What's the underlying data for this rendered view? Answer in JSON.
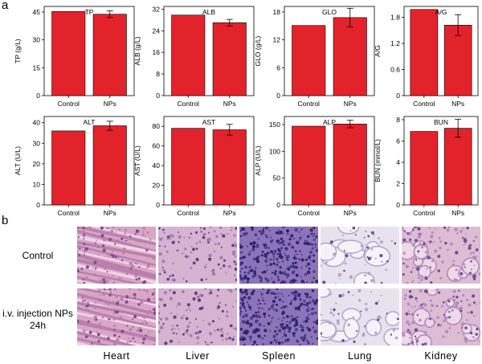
{
  "panel_labels": {
    "a": "a",
    "b": "b"
  },
  "chart_data": [
    {
      "type": "bar",
      "title": "TP",
      "ylabel": "TP (g/L)",
      "categories": [
        "Control",
        "NPs"
      ],
      "values": [
        45.3,
        43.8
      ],
      "errors": [
        0,
        1.8
      ],
      "ylim": [
        0,
        48
      ],
      "yticks": [
        0,
        15,
        30,
        45
      ]
    },
    {
      "type": "bar",
      "title": "ALB",
      "ylabel": "ALB (g/L)",
      "categories": [
        "Control",
        "NPs"
      ],
      "values": [
        29.8,
        27.0
      ],
      "errors": [
        0,
        1.2
      ],
      "ylim": [
        0,
        33
      ],
      "yticks": [
        0,
        8,
        16,
        24,
        32
      ]
    },
    {
      "type": "bar",
      "title": "GLO",
      "ylabel": "GLO (g/L)",
      "categories": [
        "Control",
        "NPs"
      ],
      "values": [
        15.1,
        16.8
      ],
      "errors": [
        0,
        2.0
      ],
      "ylim": [
        0,
        19.2
      ],
      "yticks": [
        0,
        6,
        12,
        18
      ]
    },
    {
      "type": "bar",
      "title": "A/G",
      "ylabel": "A/G",
      "categories": [
        "Control",
        "NPs"
      ],
      "values": [
        1.98,
        1.62
      ],
      "errors": [
        0,
        0.24
      ],
      "ylim": [
        0,
        2.05
      ],
      "yticks": [
        0.0,
        0.6,
        1.2,
        1.8
      ]
    },
    {
      "type": "bar",
      "title": "ALT",
      "ylabel": "ALT (U/L)",
      "categories": [
        "Control",
        "NPs"
      ],
      "values": [
        36.0,
        38.5
      ],
      "errors": [
        0,
        2.2
      ],
      "ylim": [
        0,
        43
      ],
      "yticks": [
        0,
        10,
        20,
        30,
        40
      ]
    },
    {
      "type": "bar",
      "title": "AST",
      "ylabel": "AST (U/L)",
      "categories": [
        "Control",
        "NPs"
      ],
      "values": [
        78.0,
        76.5
      ],
      "errors": [
        0,
        5.5
      ],
      "ylim": [
        0,
        90
      ],
      "yticks": [
        0,
        20,
        40,
        60,
        80
      ]
    },
    {
      "type": "bar",
      "title": "ALP",
      "ylabel": "ALP (U/L)",
      "categories": [
        "Control",
        "NPs"
      ],
      "values": [
        147,
        151
      ],
      "errors": [
        0,
        7
      ],
      "ylim": [
        0,
        165
      ],
      "yticks": [
        0,
        50,
        100,
        150
      ]
    },
    {
      "type": "bar",
      "title": "BUN",
      "ylabel": "BUN (mmol/L)",
      "categories": [
        "Control",
        "NPs"
      ],
      "values": [
        6.9,
        7.2
      ],
      "errors": [
        0,
        0.85
      ],
      "ylim": [
        0,
        8.3
      ],
      "yticks": [
        0,
        2,
        4,
        6,
        8
      ]
    }
  ],
  "histology": {
    "rows": [
      "Control",
      "i.v. injection NPs 24h"
    ],
    "row_label_lines": [
      [
        "Control"
      ],
      [
        "i.v. injection NPs",
        "24h"
      ]
    ],
    "tissues": [
      "Heart",
      "Liver",
      "Spleen",
      "Lung",
      "Kidney"
    ]
  },
  "colors": {
    "bar": "#e3232b",
    "bar_edge": "#000000"
  }
}
